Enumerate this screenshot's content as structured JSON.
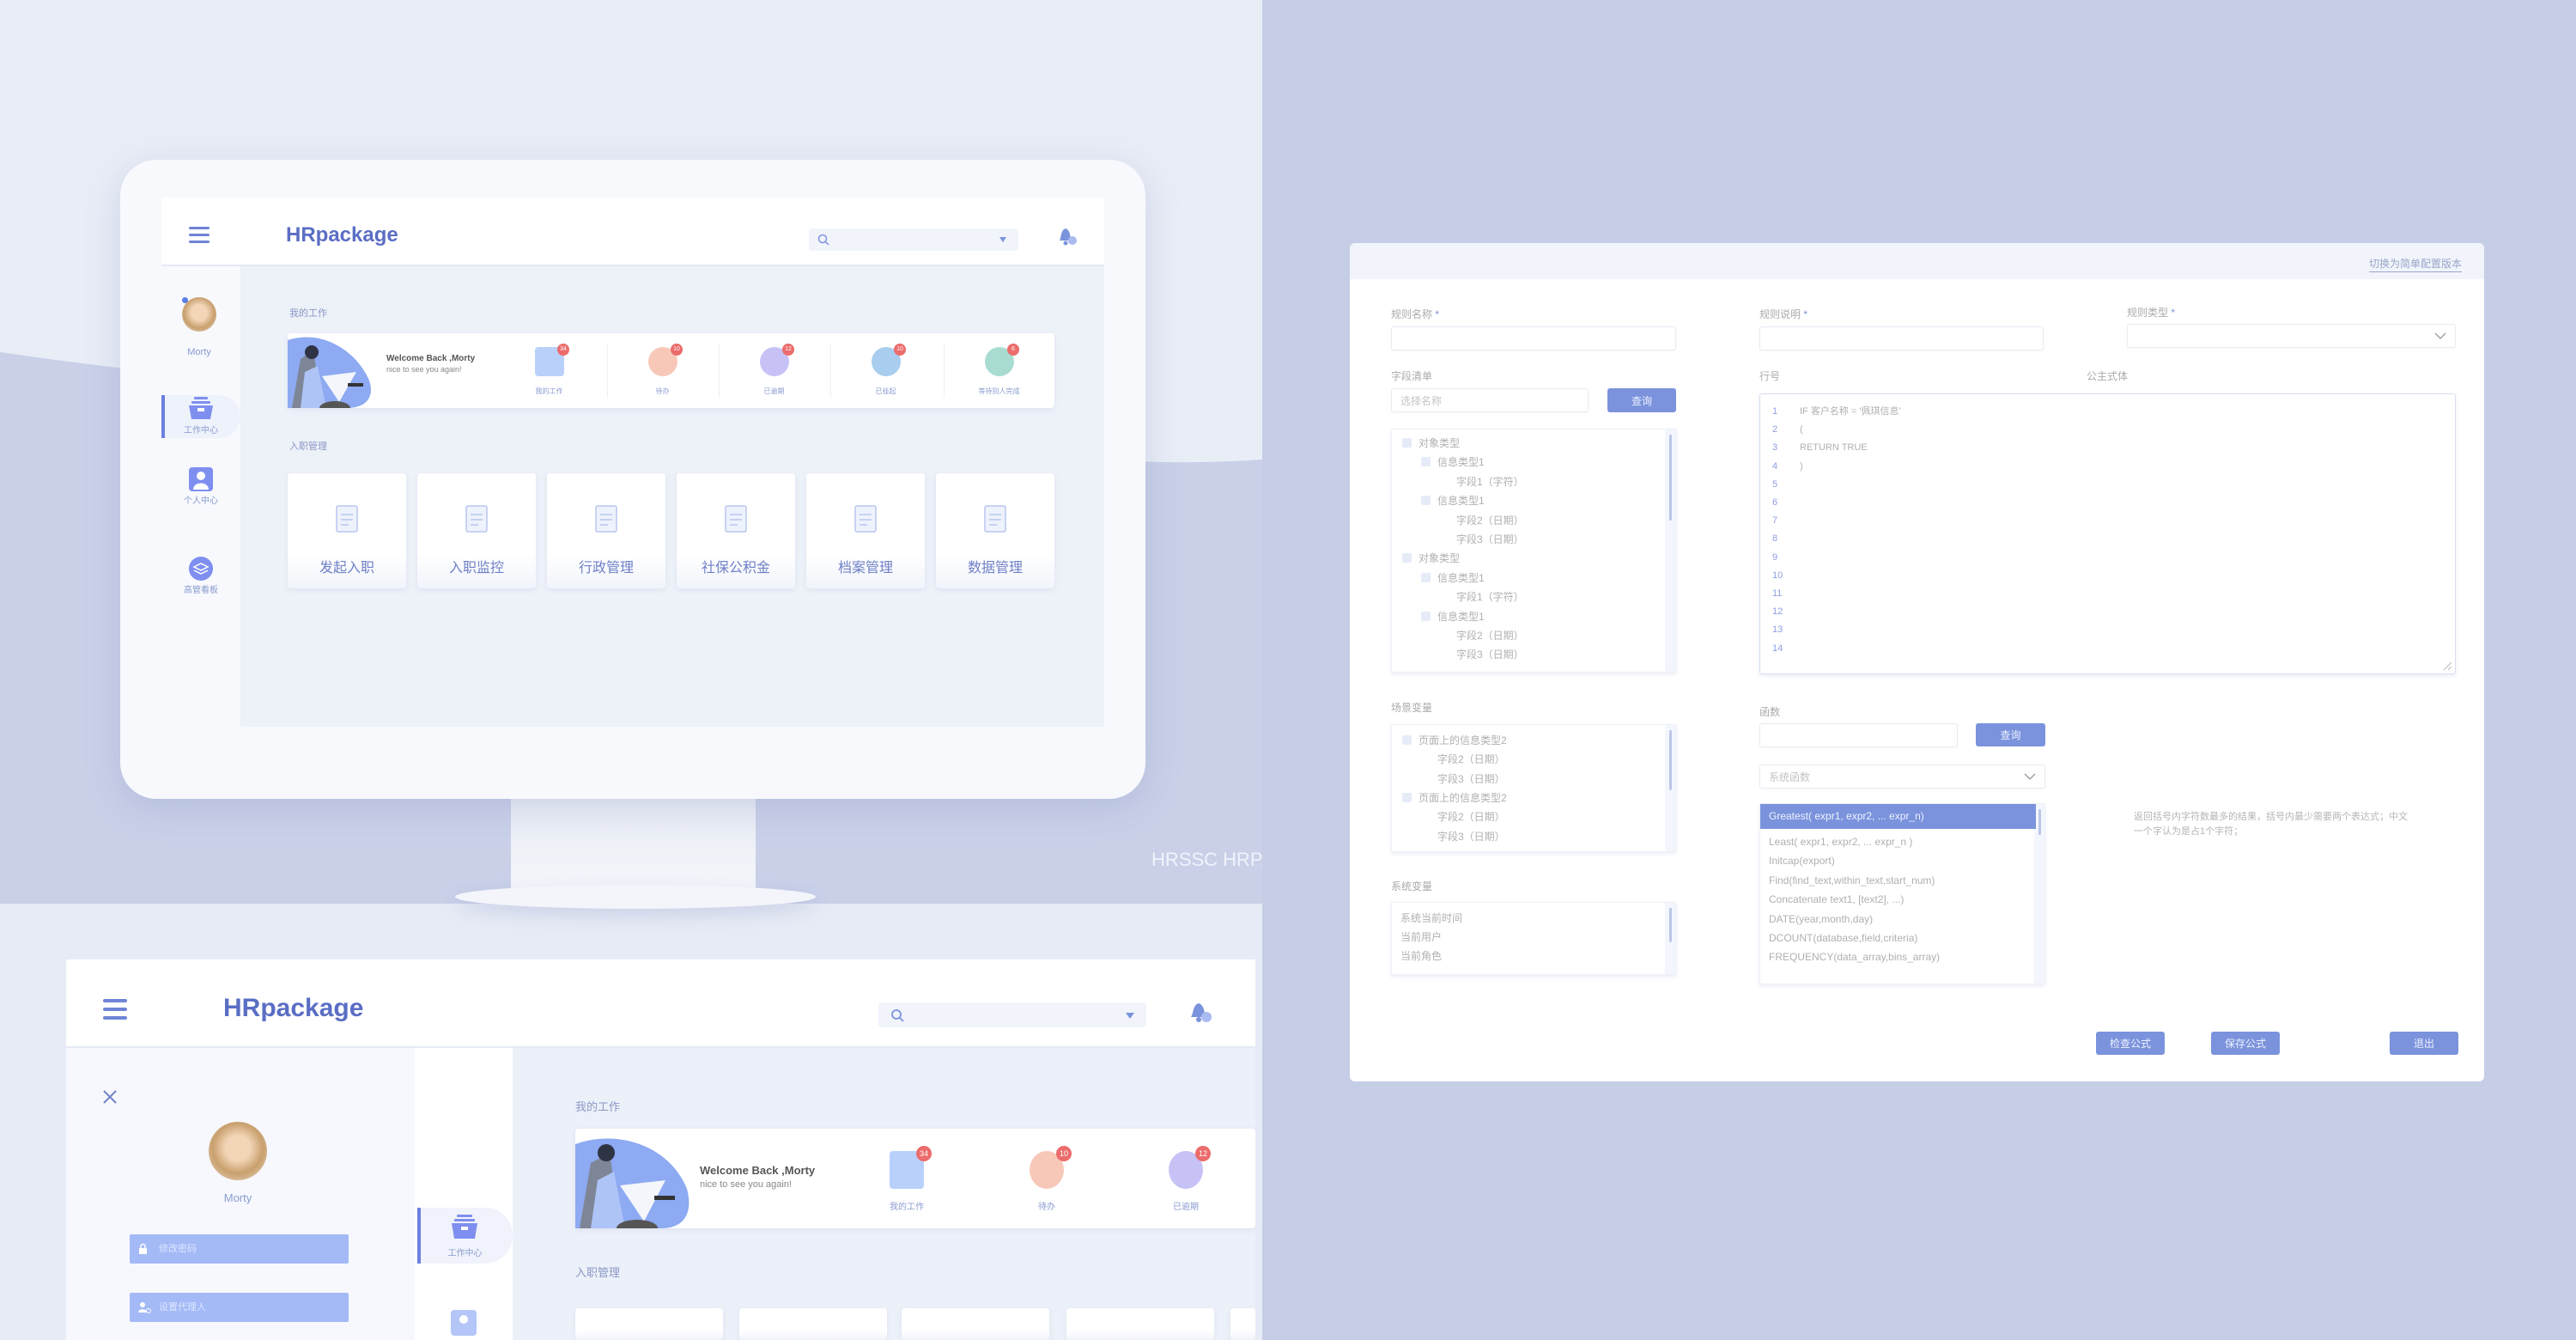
{
  "colors": {
    "primary": "#7b93dc",
    "brand": "#5a6ec4",
    "badge": "#ec6b6b",
    "backdrop": "#c6cde6",
    "light_backdrop": "#e9edf6"
  },
  "watermark": "HRSSC HRPA",
  "desktop": {
    "brand": "HRpackage",
    "user": "Morty",
    "sidebar": [
      {
        "label": "工作中心",
        "icon": "inbox-icon",
        "active": true
      },
      {
        "label": "个人中心",
        "icon": "person-icon"
      },
      {
        "label": "高管看板",
        "icon": "layers-icon"
      }
    ],
    "my_work_title": "我的工作",
    "welcome_title": "Welcome Back ,Morty",
    "welcome_sub": "nice to see you again!",
    "stats": [
      {
        "label": "我的工作",
        "count": "34",
        "color": "#b9d0fb",
        "icon": "person-card-icon"
      },
      {
        "label": "待办",
        "count": "10",
        "color": "#f7c8b8",
        "icon": "todo-list-icon"
      },
      {
        "label": "已逾期",
        "count": "12",
        "color": "#c7c2f6",
        "icon": "calendar-overdue-icon"
      },
      {
        "label": "已挂起",
        "count": "10",
        "color": "#a9cdee",
        "icon": "pause-icon"
      },
      {
        "label": "等待别人完成",
        "count": "6",
        "color": "#a8dcd1",
        "icon": "hourglass-icon"
      }
    ],
    "onboarding_title": "入职管理",
    "modules": [
      {
        "label": "发起入职",
        "icon": "edit-document-icon"
      },
      {
        "label": "入职监控",
        "icon": "id-card-icon"
      },
      {
        "label": "行政管理",
        "icon": "clipboard-icon"
      },
      {
        "label": "社保公积金",
        "icon": "umbrella-icon"
      },
      {
        "label": "档案管理",
        "icon": "book-icon"
      },
      {
        "label": "数据管理",
        "icon": "folder-icon"
      }
    ]
  },
  "rule_editor": {
    "switch_link": "切换为简单配置版本",
    "rule_name_label": "规则名称",
    "rule_desc_label": "规则说明",
    "rule_type_label": "规则类型",
    "required_mark": "*",
    "field_list_label": "字段清单",
    "field_search_placeholder": "选择名称",
    "query_label": "查询",
    "field_tree": [
      {
        "text": "对象类型",
        "level": 0,
        "check": true
      },
      {
        "text": "信息类型1",
        "level": 1,
        "check": true
      },
      {
        "text": "字段1（字符）",
        "level": 2
      },
      {
        "text": "信息类型1",
        "level": 1,
        "check": true
      },
      {
        "text": "字段2（日期）",
        "level": 2
      },
      {
        "text": "字段3（日期）",
        "level": 2
      },
      {
        "text": "对象类型",
        "level": 0,
        "check": true
      },
      {
        "text": "信息类型1",
        "level": 1,
        "check": true
      },
      {
        "text": "字段1（字符）",
        "level": 2
      },
      {
        "text": "信息类型1",
        "level": 1,
        "check": true
      },
      {
        "text": "字段2（日期）",
        "level": 2
      },
      {
        "text": "字段3（日期）",
        "level": 2
      }
    ],
    "line_no_label": "行号",
    "formula_label": "公主式体",
    "line_numbers": [
      "1",
      "2",
      "3",
      "4",
      "5",
      "6",
      "7",
      "8",
      "9",
      "10",
      "11",
      "12",
      "13",
      "14"
    ],
    "code_lines": [
      "IF 客户名称 = '佩琪信息'",
      "(",
      "RETURN TRUE",
      ")"
    ],
    "scene_vars_label": "场景变量",
    "scene_vars": [
      {
        "text": "页面上的信息类型2",
        "level": 0,
        "check": true
      },
      {
        "text": "字段2（日期）",
        "level": 1
      },
      {
        "text": "字段3（日期）",
        "level": 1
      },
      {
        "text": "页面上的信息类型2",
        "level": 0,
        "check": true
      },
      {
        "text": "字段2（日期）",
        "level": 1
      },
      {
        "text": "字段3（日期）",
        "level": 1
      }
    ],
    "system_vars_label": "系统变量",
    "system_vars": [
      "系统当前时间",
      "当前用户",
      "当前角色"
    ],
    "function_label": "函数",
    "function_select_placeholder": "系统函数",
    "functions": [
      "Greatest( expr1, expr2, ... expr_n)",
      "Least( expr1, expr2, ... expr_n )",
      "Initcap(export)",
      "Find(find_text,within_text,start_num)",
      "Concatenate text1, [text2], ...)",
      "DATE(year,month,day)",
      "DCOUNT(database,field,criteria)",
      "FREQUENCY(data_array,bins_array)"
    ],
    "selected_function": "Greatest( expr1, expr2, ... expr_n)",
    "function_desc": "返回括号内字符数最多的结果，括号内最少需要两个表达式；中文一个字认为是占1个字符；",
    "check_label": "检查公式",
    "save_label": "保存公式",
    "exit_label": "退出"
  },
  "mobile": {
    "brand": "HRpackage",
    "user": "Morty",
    "change_password": "修改密码",
    "set_agent": "设置代理人",
    "sidebar_active": "工作中心",
    "my_work_title": "我的工作",
    "welcome_title": "Welcome Back ,Morty",
    "welcome_sub": "nice to see you again!",
    "stats": [
      {
        "label": "我的工作",
        "count": "34",
        "color": "#b9d0fb"
      },
      {
        "label": "待办",
        "count": "10",
        "color": "#f7c8b8"
      },
      {
        "label": "已逾期",
        "count": "12",
        "color": "#c7c2f6"
      }
    ],
    "onboarding_title": "入职管理"
  }
}
